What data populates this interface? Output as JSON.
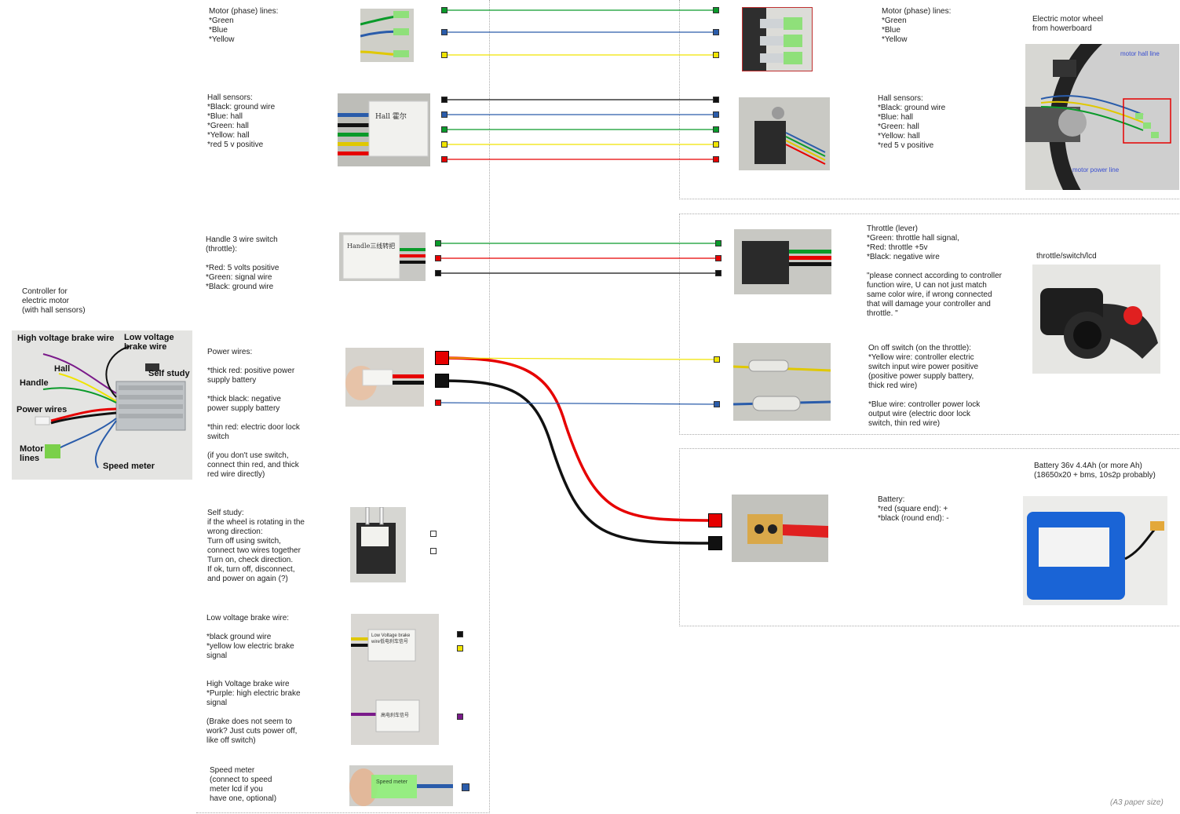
{
  "controller": {
    "title": "Controller for\nelectric motor\n(with hall sensors)",
    "labels": {
      "high_voltage_brake": "High voltage brake wire",
      "low_voltage_brake": "Low voltage\nbrake wire",
      "hall": "Hall",
      "self_study": "Self study",
      "handle": "Handle",
      "power_wires": "Power wires",
      "motor_lines": "Motor\nlines",
      "speed_meter": "Speed meter"
    }
  },
  "left": {
    "motor_lines": "Motor (phase) lines:\n*Green\n*Blue\n*Yellow",
    "hall_sensors": "Hall sensors:\n*Black: ground wire\n*Blue: hall\n*Green: hall\n*Yellow: hall\n*red 5 v positive",
    "handle": "Handle  3  wire switch\n(throttle):\n\n*Red: 5 volts positive\n*Green: signal wire\n*Black: ground wire",
    "power": "Power wires:\n\n*thick  red: positive power\nsupply battery\n\n*thick black:  negative\npower supply battery\n\n*thin red: electric door lock\nswitch\n\n(if you don't use switch,\nconnect thin red,  and thick\nred wire directly)",
    "self_study": "Self study:\nif the wheel is rotating in the\nwrong direction:\nTurn off using switch,\nconnect two wires together\nTurn on, check direction.\nIf ok, turn off, disconnect,\nand power on again (?)",
    "low_brake": "Low voltage brake wire:\n\n*black  ground wire\n*yellow low electric brake\nsignal",
    "high_brake": "High Voltage brake wire\n*Purple: high electric  brake\nsignal\n\n(Brake does not seem to\nwork? Just cuts power off,\nlike off switch)",
    "speed_meter": "Speed meter\n(connect to speed\nmeter lcd if you\nhave one, optional)"
  },
  "photo_labels": {
    "hall": "Hall 霍尔",
    "handle": "Handle三线转把",
    "low_brake": "Low Voltage brake wire低电刹车信号",
    "high_brake": "高电刹车信号",
    "speed": "Speed meter"
  },
  "right": {
    "motor_lines": "Motor (phase) lines:\n*Green\n*Blue\n*Yellow",
    "hall_sensors": "Hall sensors:\n*Black: ground wire\n*Blue: hall\n*Green: hall\n*Yellow: hall\n*red 5 v positive",
    "wheel_title": "Electric motor wheel\nfrom howerboard",
    "motor_hall_line": "motor hall line",
    "motor_power_line": "motor power line",
    "throttle": "Throttle (lever)\n*Green: throttle hall signal,\n*Red: throttle +5v\n*Black: negative wire\n\n\"please connect according to controller\nfunction wire, U can not just match\nsame color wire, if wrong connected\nthat will damage your controller and\nthrottle. \"",
    "throttle_title": "throttle/switch/lcd",
    "onoff": "On off switch (on the throttle):\n*Yellow wire: controller electric\nswitch input wire power positive\n(positive power supply battery,\nthick red wire)\n\n*Blue wire: controller power lock\noutput wire (electric door lock\nswitch, thin red wire)",
    "battery_title": "Battery 36v 4.4Ah (or more Ah)\n(18650x20 + bms, 10s2p probably)",
    "battery": "Battery:\n*red (square end): +\n*black (round end): -"
  },
  "footer_note": "(A3 paper size)",
  "colors": {
    "green": "#0a9a2a",
    "blue": "#2a5caa",
    "yellow": "#f0e400",
    "black": "#111111",
    "red": "#e60000",
    "purple": "#7a1a8a"
  }
}
